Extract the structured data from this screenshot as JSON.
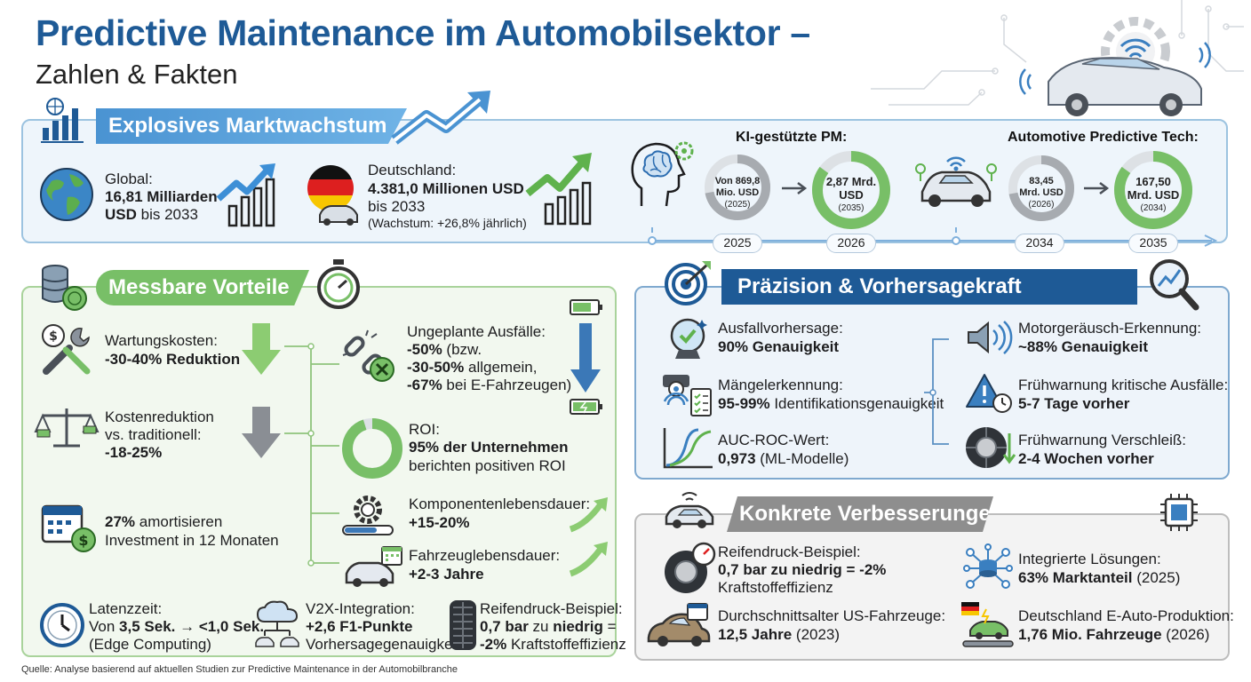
{
  "header": {
    "title": "Predictive Maintenance im Automobilsektor –",
    "subtitle": "Zahlen & Fakten"
  },
  "market": {
    "banner": "Explosives Marktwachstum",
    "global_line1": "Global:",
    "global_line2": "16,81 Milliarden",
    "global_line3_bold": "USD",
    "global_line3_rest": " bis 2033",
    "de_line1": "Deutschland:",
    "de_line2": "4.381,0 Millionen USD",
    "de_line3": "bis 2033",
    "de_line4": "(Wachstum: +26,8% jährlich)",
    "ki_heading": "KI-gestützte PM:",
    "ki_from_l1": "Von 869,8",
    "ki_from_l2": "Mio. USD",
    "ki_from_l3": "(2025)",
    "ki_to_l1": "2,87 Mrd.",
    "ki_to_l2": "USD",
    "ki_to_l3": "(2035)",
    "auto_heading": "Automotive Predictive Tech:",
    "auto_from_l1": "83,45",
    "auto_from_l2": "Mrd. USD",
    "auto_from_l3": "(2026)",
    "auto_to_l1": "167,50",
    "auto_to_l2": "Mrd. USD",
    "auto_to_l3": "(2034)",
    "timeline": [
      "2025",
      "2026",
      "2034",
      "2035"
    ]
  },
  "benefits": {
    "banner": "Messbare Vorteile",
    "wartung_l1": "Wartungskosten:",
    "wartung_l2": "-30-40% Reduktion",
    "kosten_l1": "Kostenreduktion",
    "kosten_l2": "vs. traditionell:",
    "kosten_l3": "-18-25%",
    "amort_bold": "27%",
    "amort_rest": " amortisieren",
    "amort_l2": "Investment in 12 Monaten",
    "ausfall_l1": "Ungeplante Ausfälle:",
    "ausfall_l2_bold": "-50%",
    "ausfall_l2_rest": " (bzw.",
    "ausfall_l3_bold": "-30-50%",
    "ausfall_l3_rest": " allgemein,",
    "ausfall_l4_bold": "-67%",
    "ausfall_l4_rest": " bei E-Fahrzeugen)",
    "roi_l1": "ROI:",
    "roi_l2": "95% der Unternehmen",
    "roi_l3": "berichten positiven ROI",
    "komp_l1": "Komponentenlebensdauer:",
    "komp_l2": "+15-20%",
    "fzg_l1": "Fahrzeuglebensdauer:",
    "fzg_l2": "+2-3 Jahre",
    "latenz_l1": "Latenzzeit:",
    "latenz_l2a": "Von ",
    "latenz_l2b": "3,5 Sek.",
    "latenz_l2c": " → ",
    "latenz_l2d": "<1,0 Sek.",
    "latenz_l3": "(Edge Computing)",
    "v2x_l1": "V2X-Integration:",
    "v2x_l2": "+2,6 F1-Punkte",
    "v2x_l3": "Vorhersagegenauigkeit",
    "reifen_l1": "Reifendruck-Beispiel:",
    "reifen_l2a": "0,7 bar",
    "reifen_l2b": " zu ",
    "reifen_l2c": "niedrig",
    "reifen_l2d": " =",
    "reifen_l3a": "-2%",
    "reifen_l3b": " Kraftstoffeffizienz"
  },
  "precision": {
    "banner": "Präzision & Vorhersagekraft",
    "ausfall_l1": "Ausfallvorhersage:",
    "ausfall_l2": "90% Genauigkeit",
    "maengel_l1": "Mängelerkennung:",
    "maengel_l2a": "95-99%",
    "maengel_l2b": " Identifikationsgenauigkeit",
    "auc_l1": "AUC-ROC-Wert:",
    "auc_l2a": "0,973",
    "auc_l2b": " (ML-Modelle)",
    "motor_l1": "Motorgeräusch-Erkennung:",
    "motor_l2": "~88% Genauigkeit",
    "frueh_l1": "Frühwarnung kritische Ausfälle:",
    "frueh_l2": "5-7 Tage vorher",
    "versch_l1": "Frühwarnung Verschleiß:",
    "versch_l2": "2-4 Wochen vorher"
  },
  "improvements": {
    "banner": "Konkrete Verbesserungen",
    "reifen_l1": "Reifendruck-Beispiel:",
    "reifen_l2": "0,7 bar zu niedrig = -2%",
    "reifen_l3": "Kraftstoffeffizienz",
    "alter_l1": "Durchschnittsalter US-Fahrzeuge:",
    "alter_l2a": "12,5 Jahre",
    "alter_l2b": " (2023)",
    "integ_l1": "Integrierte Lösungen:",
    "integ_l2a": "63% Marktanteil",
    "integ_l2b": " (2025)",
    "de_l1": "Deutschland E-Auto-Produktion:",
    "de_l2a": "1,76 Mio. Fahrzeuge",
    "de_l2b": " (2026)"
  },
  "footer": {
    "source": "Quelle: Analyse basierend auf aktuellen Studien zur Predictive Maintenance in der Automobilbranche"
  },
  "rings": {
    "roi_share": 0.95,
    "ki_from": 0.72,
    "ki_to": 0.85,
    "auto_from": 0.72,
    "auto_to": 0.85
  },
  "colors": {
    "title_blue": "#1e5a96",
    "market_blue": "#4a93d2",
    "benefit_green": "#78bf67",
    "precision_navy": "#1e5a96",
    "improve_grey": "#8e8e8e"
  }
}
